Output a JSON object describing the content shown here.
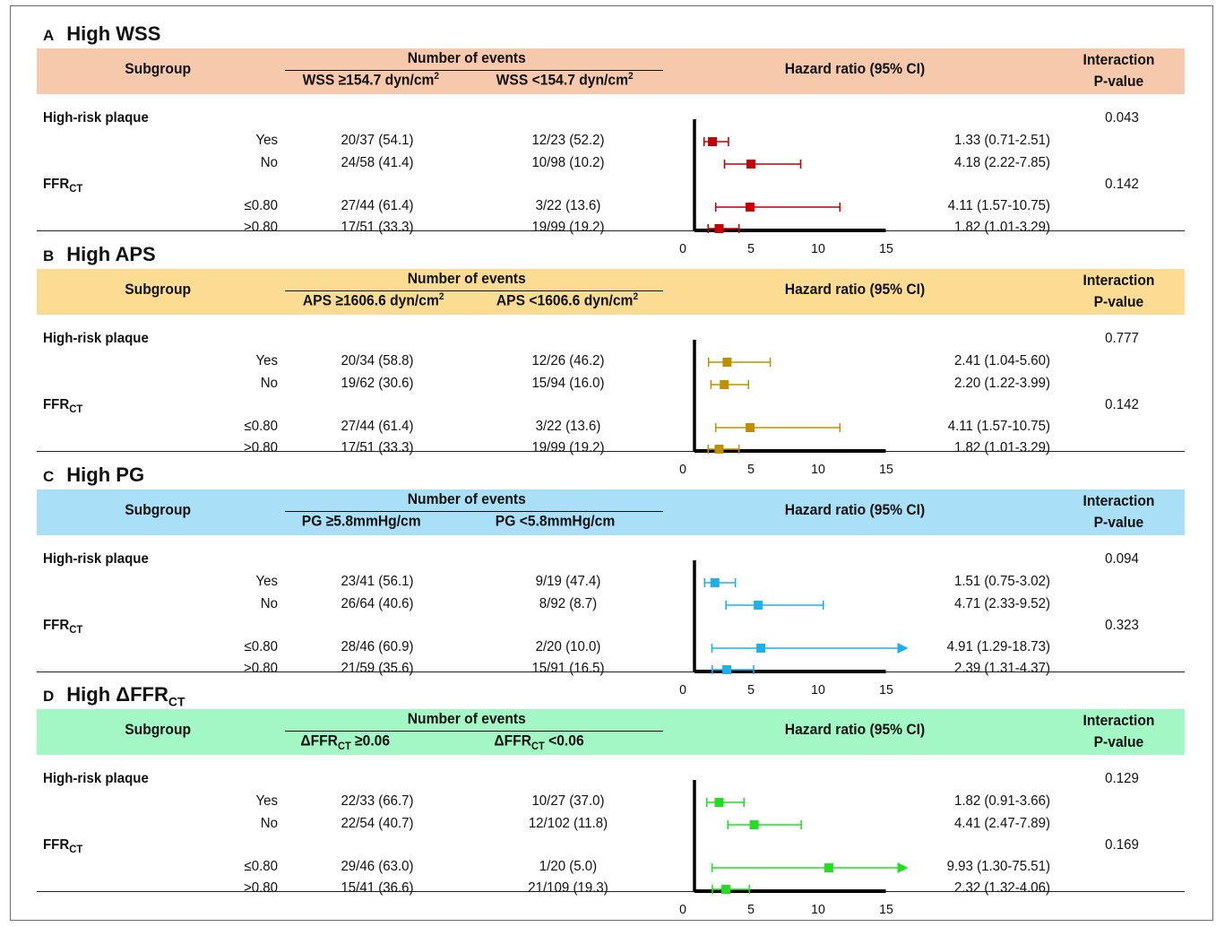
{
  "column_headers": {
    "subgroup": "Subgroup",
    "number_of_events": "Number of events",
    "hazard_ratio": "Hazard ratio (95% CI)",
    "interaction_line1": "Interaction",
    "interaction_line2": "P-value"
  },
  "row_labels": {
    "group1": "High-risk plaque",
    "group2_main": "FFR",
    "group2_sub": "CT",
    "yes": "Yes",
    "no": "No",
    "le": "≤0.80",
    "gt": ">0.80"
  },
  "panels": [
    {
      "letter": "A",
      "title_main": "High WSS",
      "title_sub": "",
      "header_color": "#f6c9ad",
      "series_color": "#c00000",
      "col1": {
        "pre": "WSS ≥154.7 dyn/cm",
        "sub": "",
        "post": "",
        "sup": "2"
      },
      "col2": {
        "pre": "WSS <154.7 dyn/cm",
        "sub": "",
        "post": "",
        "sup": "2"
      },
      "p_values": [
        "0.043",
        "0.142"
      ],
      "rows": [
        {
          "high": "20/37 (54.1)",
          "low": "12/23 (52.2)",
          "ci_text": "1.33 (0.71-2.51)"
        },
        {
          "high": "24/58 (41.4)",
          "low": "10/98 (10.2)",
          "ci_text": "4.18 (2.22-7.85)"
        },
        {
          "high": "27/44 (61.4)",
          "low": "3/22 (13.6)",
          "ci_text": "4.11 (1.57-10.75)"
        },
        {
          "high": "17/51 (33.3)",
          "low": "19/99 (19.2)",
          "ci_text": "1.82 (1.01-3.29)"
        }
      ]
    },
    {
      "letter": "B",
      "title_main": "High APS",
      "title_sub": "",
      "header_color": "#fbdc92",
      "series_color": "#bf8f00",
      "col1": {
        "pre": "APS ≥1606.6 dyn/cm",
        "sub": "",
        "post": "",
        "sup": "2"
      },
      "col2": {
        "pre": "APS <1606.6 dyn/cm",
        "sub": "",
        "post": "",
        "sup": "2"
      },
      "p_values": [
        "0.777",
        "0.142"
      ],
      "rows": [
        {
          "high": "20/34 (58.8)",
          "low": "12/26 (46.2)",
          "ci_text": "2.41 (1.04-5.60)"
        },
        {
          "high": "19/62 (30.6)",
          "low": "15/94 (16.0)",
          "ci_text": "2.20 (1.22-3.99)"
        },
        {
          "high": "27/44 (61.4)",
          "low": "3/22 (13.6)",
          "ci_text": "4.11 (1.57-10.75)"
        },
        {
          "high": "17/51 (33.3)",
          "low": "19/99 (19.2)",
          "ci_text": "1.82 (1.01-3.29)"
        }
      ]
    },
    {
      "letter": "C",
      "title_main": "High PG",
      "title_sub": "",
      "header_color": "#a9dff7",
      "series_color": "#1fb0ea",
      "col1": {
        "pre": "PG ≥5.8mmHg/cm",
        "sub": "",
        "post": "",
        "sup": ""
      },
      "col2": {
        "pre": "PG <5.8mmHg/cm",
        "sub": "",
        "post": "",
        "sup": ""
      },
      "p_values": [
        "0.094",
        "0.323"
      ],
      "rows": [
        {
          "high": "23/41 (56.1)",
          "low": "9/19 (47.4)",
          "ci_text": "1.51 (0.75-3.02)"
        },
        {
          "high": "26/64 (40.6)",
          "low": "8/92 (8.7)",
          "ci_text": "4.71 (2.33-9.52)"
        },
        {
          "high": "28/46 (60.9)",
          "low": "2/20 (10.0)",
          "ci_text": "4.91 (1.29-18.73)"
        },
        {
          "high": "21/59 (35.6)",
          "low": "15/91 (16.5)",
          "ci_text": "2.39 (1.31-4.37)"
        }
      ]
    },
    {
      "letter": "D",
      "title_main": "High ΔFFR",
      "title_sub": "CT",
      "header_color": "#a3f7c5",
      "series_color": "#22dd22",
      "col1": {
        "pre": "ΔFFR",
        "sub": "CT",
        "post": " ≥0.06",
        "sup": ""
      },
      "col2": {
        "pre": "ΔFFR",
        "sub": "CT",
        "post": " <0.06",
        "sup": ""
      },
      "p_values": [
        "0.129",
        "0.169"
      ],
      "rows": [
        {
          "high": "22/33 (66.7)",
          "low": "10/27 (37.0)",
          "ci_text": "1.82 (0.91-3.66)"
        },
        {
          "high": "22/54 (40.7)",
          "low": "12/102 (11.8)",
          "ci_text": "4.41 (2.47-7.89)"
        },
        {
          "high": "29/46 (63.0)",
          "low": "1/20 (5.0)",
          "ci_text": "9.93 (1.30-75.51)"
        },
        {
          "high": "15/41 (36.6)",
          "low": "21/109 (19.3)",
          "ci_text": "2.32 (1.32-4.06)"
        }
      ]
    }
  ],
  "chart_data": {
    "type": "forest",
    "x_ticks": [
      "0",
      "5",
      "10",
      "15"
    ],
    "xlim": [
      0,
      15
    ],
    "reference_line": 0,
    "subgroups": [
      "High-risk plaque: Yes",
      "High-risk plaque: No",
      "FFRCT ≤0.80",
      "FFRCT >0.80"
    ],
    "series": [
      {
        "name": "High WSS",
        "hr": [
          1.33,
          4.18,
          4.11,
          1.82
        ],
        "lower": [
          0.71,
          2.22,
          1.57,
          1.01
        ],
        "upper": [
          2.51,
          7.85,
          10.75,
          3.29
        ]
      },
      {
        "name": "High APS",
        "hr": [
          2.41,
          2.2,
          4.11,
          1.82
        ],
        "lower": [
          1.04,
          1.22,
          1.57,
          1.01
        ],
        "upper": [
          5.6,
          3.99,
          10.75,
          3.29
        ]
      },
      {
        "name": "High PG",
        "hr": [
          1.51,
          4.71,
          4.91,
          2.39
        ],
        "lower": [
          0.75,
          2.33,
          1.29,
          1.31
        ],
        "upper": [
          3.02,
          9.52,
          18.73,
          4.37
        ]
      },
      {
        "name": "High ΔFFRCT",
        "hr": [
          1.82,
          4.41,
          9.93,
          2.32
        ],
        "lower": [
          0.91,
          2.47,
          1.3,
          1.32
        ],
        "upper": [
          3.66,
          7.89,
          75.51,
          4.06
        ]
      }
    ]
  }
}
